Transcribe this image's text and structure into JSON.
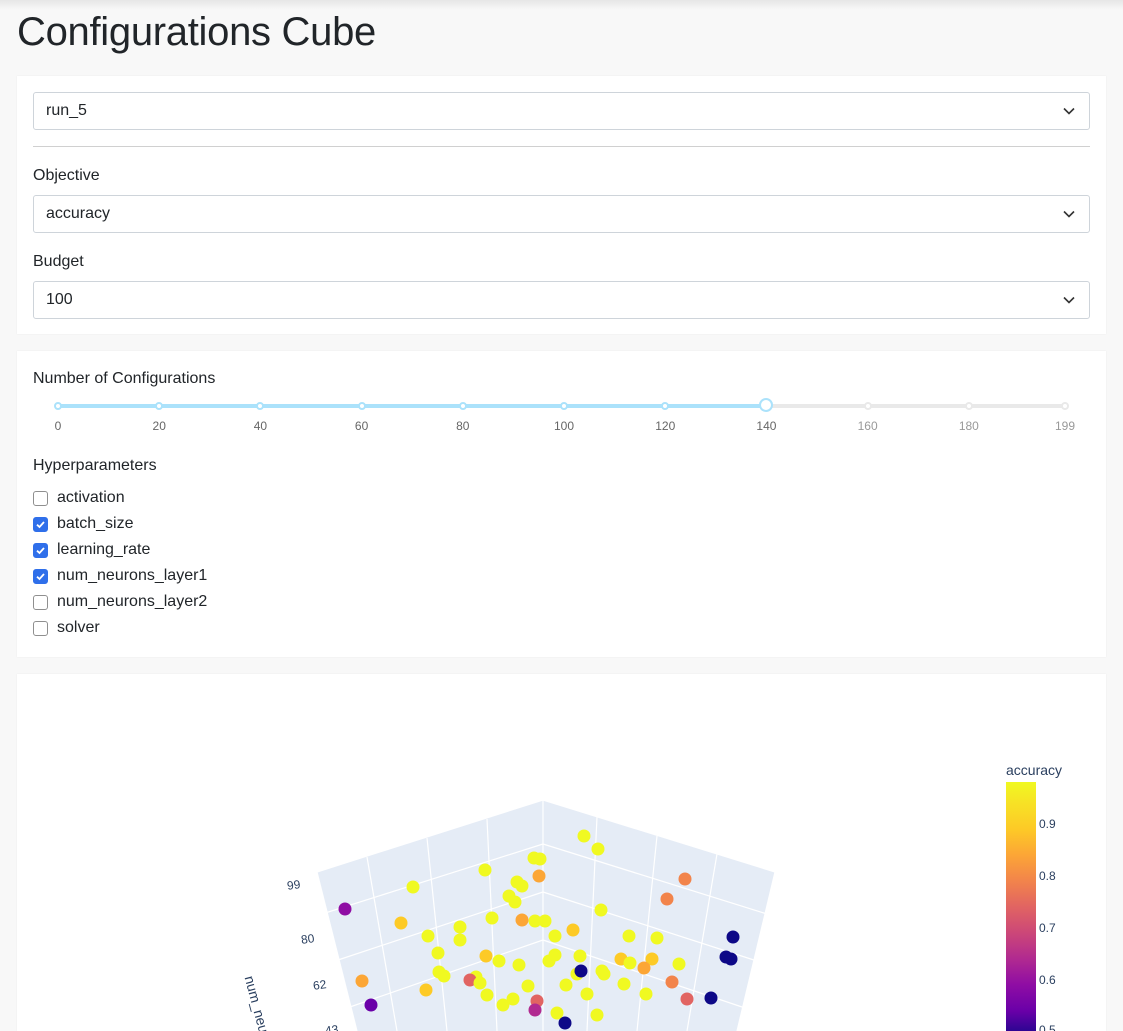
{
  "page": {
    "title": "Configurations Cube"
  },
  "run_select": {
    "value": "run_5"
  },
  "objective": {
    "label": "Objective",
    "value": "accuracy"
  },
  "budget": {
    "label": "Budget",
    "value": "100"
  },
  "slider": {
    "label": "Number of Configurations",
    "value": 140,
    "marks": [
      "0",
      "20",
      "40",
      "60",
      "80",
      "100",
      "120",
      "140",
      "160",
      "180",
      "199"
    ]
  },
  "hyperparameters": {
    "label": "Hyperparameters",
    "items": [
      {
        "label": "activation",
        "checked": false
      },
      {
        "label": "batch_size",
        "checked": true
      },
      {
        "label": "learning_rate",
        "checked": true
      },
      {
        "label": "num_neurons_layer1",
        "checked": true
      },
      {
        "label": "num_neurons_layer2",
        "checked": false
      },
      {
        "label": "solver",
        "checked": false
      }
    ]
  },
  "plot": {
    "colorbar_title": "accuracy",
    "colorbar_ticks": [
      "0.9",
      "0.8",
      "0.7",
      "0.6",
      "0.5"
    ],
    "axis_title": "num_neuro",
    "axis_ticks": [
      "99",
      "80",
      "62",
      "43"
    ],
    "colorscale": [
      "#0d0887",
      "#6a00a8",
      "#8f0da4",
      "#b12a90",
      "#cc4778",
      "#e16462",
      "#f2844b",
      "#fca636",
      "#fdca26",
      "#f0f921"
    ]
  }
}
